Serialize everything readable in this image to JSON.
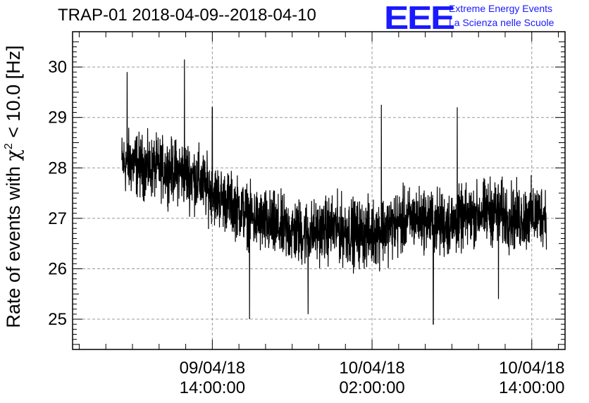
{
  "chart_data": {
    "type": "line",
    "title": "TRAP-01 2018-04-09--2018-04-10",
    "ylabel_prefix": "Rate of events with ",
    "ylabel_chi": "χ",
    "ylabel_sup": "2",
    "ylabel_suffix": " < 10.0 [Hz]",
    "xlabel": "",
    "ylim": [
      24.4,
      30.7
    ],
    "y_ticks": [
      25,
      26,
      27,
      28,
      29,
      30
    ],
    "y_tick_labels": [
      "25",
      "26",
      "27",
      "28",
      "29",
      "30"
    ],
    "x_ticks": [
      {
        "date": "09/04/18",
        "time": "14:00:00",
        "hours": 14
      },
      {
        "date": "10/04/18",
        "time": "02:00:00",
        "hours": 26
      },
      {
        "date": "10/04/18",
        "time": "14:00:00",
        "hours": 38
      }
    ],
    "xlim_hours": [
      3.5,
      40.5
    ],
    "series_trend": {
      "x_hours": [
        7.2,
        8,
        9,
        10,
        11,
        12,
        13,
        14,
        15,
        16,
        17,
        18,
        19,
        20,
        21,
        22,
        23,
        24,
        25,
        26,
        27,
        28,
        29,
        30,
        31,
        32,
        33,
        34,
        35,
        36,
        37,
        38,
        39,
        39.1
      ],
      "mean": [
        28.1,
        28.1,
        28.0,
        28.0,
        27.95,
        27.9,
        27.75,
        27.5,
        27.35,
        27.2,
        27.0,
        26.9,
        26.8,
        26.75,
        26.7,
        26.75,
        26.8,
        26.75,
        26.7,
        26.7,
        26.8,
        26.9,
        27.0,
        27.0,
        26.9,
        26.9,
        27.0,
        27.1,
        27.15,
        27.05,
        27.0,
        27.05,
        27.1,
        27.1
      ],
      "half_band": [
        0.55,
        0.6,
        0.55,
        0.55,
        0.55,
        0.6,
        0.6,
        0.55,
        0.55,
        0.55,
        0.55,
        0.6,
        0.6,
        0.6,
        0.6,
        0.55,
        0.6,
        0.6,
        0.6,
        0.6,
        0.6,
        0.6,
        0.55,
        0.55,
        0.6,
        0.6,
        0.55,
        0.55,
        0.6,
        0.6,
        0.6,
        0.6,
        0.55,
        0.55
      ]
    },
    "extremes": [
      {
        "x_hours": 7.6,
        "y": 29.9
      },
      {
        "x_hours": 11.9,
        "y": 30.15
      },
      {
        "x_hours": 14.0,
        "y": 29.2
      },
      {
        "x_hours": 16.8,
        "y": 25.0
      },
      {
        "x_hours": 21.2,
        "y": 25.1
      },
      {
        "x_hours": 26.7,
        "y": 29.25
      },
      {
        "x_hours": 30.6,
        "y": 24.9
      },
      {
        "x_hours": 32.4,
        "y": 29.2
      },
      {
        "x_hours": 35.5,
        "y": 25.4
      }
    ],
    "grid": true,
    "colors": {
      "line": "#000000",
      "grid": "#999999"
    }
  },
  "logo": {
    "mark": "EEE",
    "line1": "Extreme Energy Events",
    "line2": "La Scienza nelle Scuole",
    "color": "#1a1aff"
  }
}
